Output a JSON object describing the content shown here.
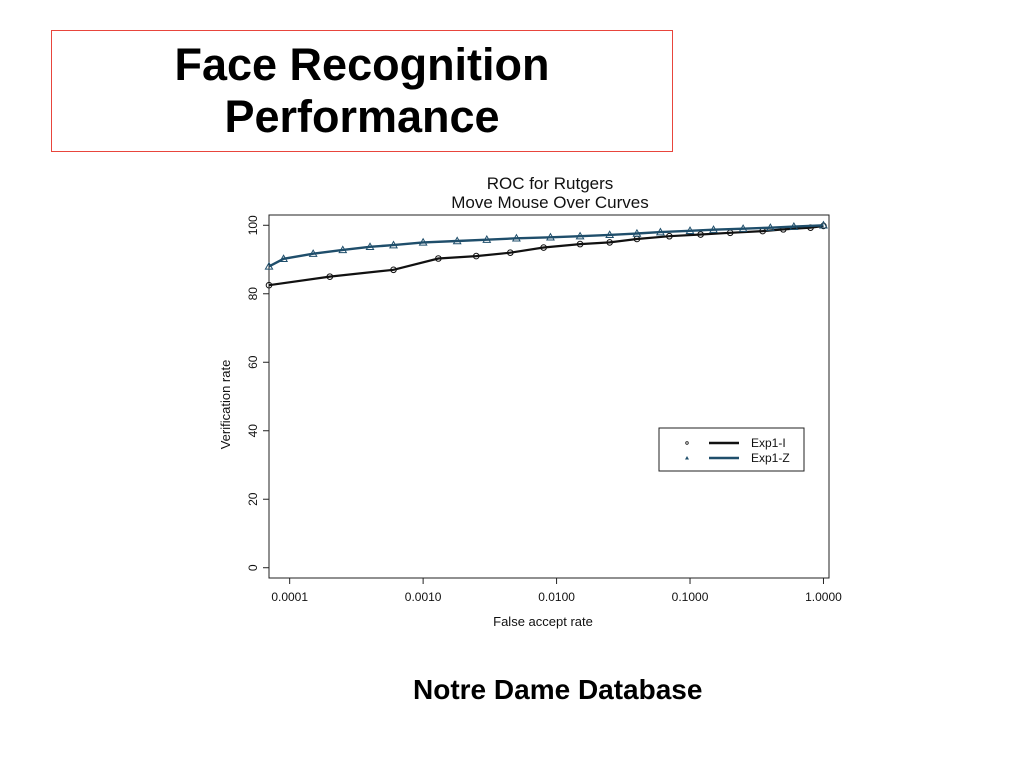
{
  "slide": {
    "title": "Face Recognition\nPerformance",
    "caption": "Notre Dame Database",
    "title_border_color": "#e8453c"
  },
  "chart_data": {
    "type": "line",
    "title": "ROC for Rutgers",
    "subtitle": "Move Mouse Over Curves",
    "xlabel": "False accept rate",
    "ylabel": "Verification rate",
    "x_scale": "log",
    "xlim": [
      7e-05,
      1.1
    ],
    "ylim": [
      -3,
      103
    ],
    "x_ticks": [
      0.0001,
      0.001,
      0.01,
      0.1,
      1.0
    ],
    "x_tick_labels": [
      "0.0001",
      "0.0010",
      "0.0100",
      "0.1000",
      "1.0000"
    ],
    "y_ticks": [
      0,
      20,
      40,
      60,
      80,
      100
    ],
    "y_tick_labels": [
      "0",
      "20",
      "40",
      "60",
      "80",
      "100"
    ],
    "grid": false,
    "legend_position": "lower-right",
    "series": [
      {
        "name": "Exp1-I",
        "marker": "circle",
        "color": "#111111",
        "x": [
          7e-05,
          0.0002,
          0.0006,
          0.0013,
          0.0025,
          0.0045,
          0.008,
          0.015,
          0.025,
          0.04,
          0.07,
          0.12,
          0.2,
          0.35,
          0.5,
          0.8,
          1.0
        ],
        "y": [
          82.5,
          85,
          87,
          90.3,
          91,
          92,
          93.5,
          94.5,
          95,
          96,
          96.8,
          97.3,
          97.8,
          98.3,
          98.8,
          99.3,
          99.8
        ]
      },
      {
        "name": "Exp1-Z",
        "marker": "triangle",
        "color": "#1f4e6b",
        "x": [
          7e-05,
          9e-05,
          0.00015,
          0.00025,
          0.0004,
          0.0006,
          0.001,
          0.0018,
          0.003,
          0.005,
          0.009,
          0.015,
          0.025,
          0.04,
          0.06,
          0.1,
          0.15,
          0.25,
          0.4,
          0.6,
          1.0
        ],
        "y": [
          88,
          90.2,
          91.7,
          92.8,
          93.7,
          94.2,
          95,
          95.4,
          95.8,
          96.2,
          96.5,
          96.8,
          97.2,
          97.6,
          98,
          98.4,
          98.7,
          99,
          99.3,
          99.6,
          100
        ]
      }
    ]
  }
}
